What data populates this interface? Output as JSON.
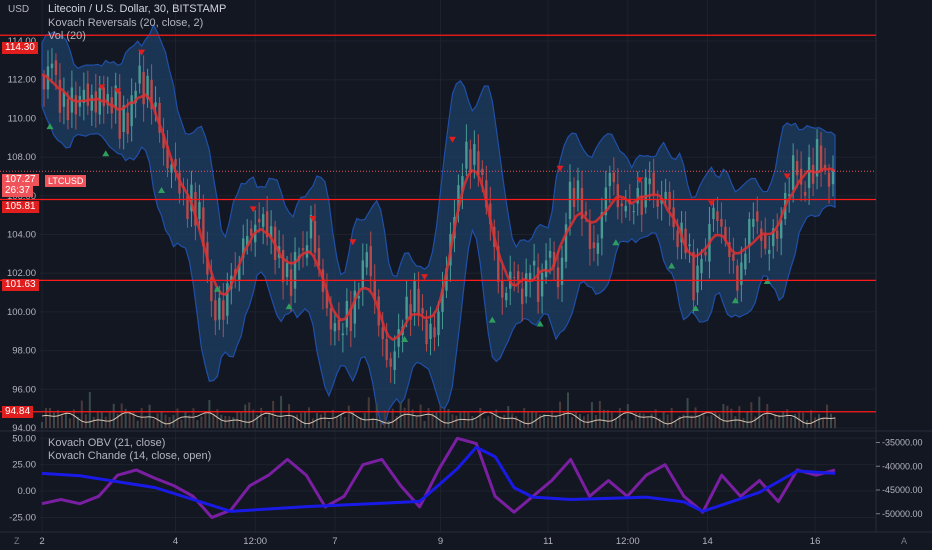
{
  "header": {
    "currency": "USD",
    "title": "Litecoin / U.S. Dollar, 30, BITSTAMP",
    "indicator1": "Kovach Reversals (20, close, 2)",
    "indicator2": "Vol (20)",
    "indicator3": "Kovach OBV (21, close)",
    "indicator4": "Kovach Chande (14, close, open)"
  },
  "price_tags": {
    "h1": "114.30",
    "h2": "105.81",
    "h3": "101.63",
    "h4": "94.84",
    "last_price": "107.27",
    "countdown": "26:37",
    "symbol": "LTCUSD"
  },
  "corner": {
    "left": "Z",
    "right": "A"
  },
  "colors": {
    "background": "#131722",
    "band_fill": "#1e3f66",
    "band_edge": "#1f4fa8",
    "mid_line": "#e03030",
    "candle_up": "#4a9a94",
    "candle_down": "#b84a4a",
    "hline": "#ff1a1a",
    "obv": "#1a1ae6",
    "chande": "#7b1fa2"
  },
  "chart_data": [
    {
      "type": "candlestick",
      "title": "Litecoin / U.S. Dollar, 30, BITSTAMP",
      "ylabel": "USD",
      "ylim": [
        94,
        115.5
      ],
      "y_ticks": [
        "114.00",
        "112.00",
        "110.00",
        "108.00",
        "106.00",
        "104.00",
        "102.00",
        "100.00",
        "98.00",
        "96.00",
        "94.00"
      ],
      "x_ticks": [
        "2",
        "4",
        "12:00",
        "7",
        "9",
        "11",
        "12:00",
        "14",
        "16"
      ],
      "horizontal_lines": [
        114.3,
        105.81,
        101.63,
        94.84
      ],
      "last_price": 107.27,
      "close_path": [
        [
          0,
          112.2
        ],
        [
          4,
          111.5
        ],
        [
          8,
          112.6
        ],
        [
          12,
          113.0
        ],
        [
          16,
          112.0
        ],
        [
          20,
          110.6
        ],
        [
          24,
          111.0
        ],
        [
          28,
          110.3
        ],
        [
          32,
          111.2
        ],
        [
          36,
          110.6
        ],
        [
          40,
          110.8
        ],
        [
          44,
          111.8
        ],
        [
          48,
          110.4
        ],
        [
          52,
          111.4
        ],
        [
          56,
          110.2
        ],
        [
          60,
          111.6
        ],
        [
          64,
          110.7
        ],
        [
          68,
          111.1
        ],
        [
          72,
          110.5
        ],
        [
          76,
          111.4
        ],
        [
          80,
          109.3
        ],
        [
          84,
          110.3
        ],
        [
          88,
          109.6
        ],
        [
          92,
          110.8
        ],
        [
          96,
          111.8
        ],
        [
          100,
          112.4
        ],
        [
          104,
          111.0
        ],
        [
          108,
          112.0
        ],
        [
          112,
          110.6
        ],
        [
          116,
          110.8
        ],
        [
          120,
          109.2
        ],
        [
          124,
          108.6
        ],
        [
          128,
          107.2
        ],
        [
          132,
          107.9
        ],
        [
          136,
          107.2
        ],
        [
          140,
          106.5
        ],
        [
          144,
          106.0
        ],
        [
          148,
          105.2
        ],
        [
          152,
          106.2
        ],
        [
          156,
          104.8
        ],
        [
          160,
          105.4
        ],
        [
          164,
          103.6
        ],
        [
          168,
          101.8
        ],
        [
          172,
          100.6
        ],
        [
          176,
          99.6
        ],
        [
          180,
          100.6
        ],
        [
          184,
          99.8
        ],
        [
          188,
          101.2
        ],
        [
          192,
          102.2
        ],
        [
          196,
          101.6
        ],
        [
          200,
          102.8
        ],
        [
          204,
          103.4
        ],
        [
          208,
          104.3
        ],
        [
          212,
          103.6
        ],
        [
          216,
          104.8
        ],
        [
          220,
          104.4
        ],
        [
          224,
          105.2
        ],
        [
          228,
          103.8
        ],
        [
          232,
          104.4
        ],
        [
          236,
          102.8
        ],
        [
          240,
          103.2
        ],
        [
          244,
          101.8
        ],
        [
          248,
          102.2
        ],
        [
          252,
          101.2
        ],
        [
          256,
          102.7
        ],
        [
          260,
          103.3
        ],
        [
          264,
          102.8
        ],
        [
          268,
          103.8
        ],
        [
          272,
          104.7
        ],
        [
          276,
          103.3
        ],
        [
          280,
          102.2
        ],
        [
          284,
          101.1
        ],
        [
          288,
          100.2
        ],
        [
          292,
          99.0
        ],
        [
          296,
          99.6
        ],
        [
          300,
          98.8
        ],
        [
          304,
          99.2
        ],
        [
          308,
          100.2
        ],
        [
          312,
          99.4
        ],
        [
          316,
          100.7
        ],
        [
          320,
          101.2
        ],
        [
          324,
          102.3
        ],
        [
          328,
          103.4
        ],
        [
          332,
          101.6
        ],
        [
          336,
          100.8
        ],
        [
          340,
          99.2
        ],
        [
          344,
          98.6
        ],
        [
          348,
          97.6
        ],
        [
          352,
          97.0
        ],
        [
          356,
          98.2
        ],
        [
          360,
          98.8
        ],
        [
          364,
          99.6
        ],
        [
          368,
          100.4
        ],
        [
          372,
          100.0
        ],
        [
          376,
          101.2
        ],
        [
          380,
          100.2
        ],
        [
          384,
          99.6
        ],
        [
          388,
          98.6
        ],
        [
          392,
          99.2
        ],
        [
          396,
          98.8
        ],
        [
          400,
          100.0
        ],
        [
          404,
          101.1
        ],
        [
          408,
          102.4
        ],
        [
          412,
          103.8
        ],
        [
          416,
          105.2
        ],
        [
          420,
          106.2
        ],
        [
          424,
          107.4
        ],
        [
          428,
          108.4
        ],
        [
          432,
          107.6
        ],
        [
          436,
          108.3
        ],
        [
          440,
          107.4
        ],
        [
          444,
          106.8
        ],
        [
          448,
          105.6
        ],
        [
          452,
          104.4
        ],
        [
          456,
          103.4
        ],
        [
          460,
          101.6
        ],
        [
          464,
          100.6
        ],
        [
          468,
          101.2
        ],
        [
          472,
          101.8
        ],
        [
          476,
          102.1
        ],
        [
          480,
          101.2
        ],
        [
          484,
          100.8
        ],
        [
          488,
          101.6
        ],
        [
          492,
          102.4
        ],
        [
          496,
          102.3
        ],
        [
          500,
          100.8
        ],
        [
          504,
          101.8
        ],
        [
          508,
          102.8
        ],
        [
          512,
          103.1
        ],
        [
          516,
          102.3
        ],
        [
          520,
          101.4
        ],
        [
          524,
          102.6
        ],
        [
          528,
          104.8
        ],
        [
          532,
          106.4
        ],
        [
          536,
          105.8
        ],
        [
          540,
          106.4
        ],
        [
          544,
          105.2
        ],
        [
          548,
          104.6
        ],
        [
          552,
          103.6
        ],
        [
          556,
          103.0
        ],
        [
          560,
          103.8
        ],
        [
          564,
          105.0
        ],
        [
          568,
          106.5
        ],
        [
          572,
          107.2
        ],
        [
          576,
          106.6
        ],
        [
          580,
          105.6
        ],
        [
          584,
          105.2
        ],
        [
          588,
          105.8
        ],
        [
          592,
          105.2
        ],
        [
          596,
          105.6
        ],
        [
          600,
          106.0
        ],
        [
          604,
          105.4
        ],
        [
          608,
          106.6
        ],
        [
          612,
          107.2
        ],
        [
          616,
          105.8
        ],
        [
          620,
          105.6
        ],
        [
          624,
          105.8
        ],
        [
          628,
          106.2
        ],
        [
          632,
          105.4
        ],
        [
          636,
          104.2
        ],
        [
          640,
          103.6
        ],
        [
          644,
          104.3
        ],
        [
          648,
          103.4
        ],
        [
          652,
          103.1
        ],
        [
          656,
          101.0
        ],
        [
          660,
          102.0
        ],
        [
          664,
          103.1
        ],
        [
          668,
          102.6
        ],
        [
          672,
          104.8
        ],
        [
          676,
          105.2
        ],
        [
          680,
          104.8
        ],
        [
          684,
          104.4
        ],
        [
          688,
          103.6
        ],
        [
          692,
          103.0
        ],
        [
          696,
          102.4
        ],
        [
          700,
          101.4
        ],
        [
          704,
          102.2
        ],
        [
          708,
          103.4
        ],
        [
          712,
          104.4
        ],
        [
          716,
          105.2
        ],
        [
          720,
          104.3
        ],
        [
          724,
          104.0
        ],
        [
          728,
          103.0
        ],
        [
          732,
          103.4
        ],
        [
          736,
          104.2
        ],
        [
          740,
          103.8
        ],
        [
          744,
          104.8
        ],
        [
          748,
          106.0
        ],
        [
          752,
          106.3
        ],
        [
          756,
          107.8
        ],
        [
          760,
          107.4
        ],
        [
          764,
          106.2
        ],
        [
          768,
          106.4
        ],
        [
          772,
          107.6
        ],
        [
          776,
          107.0
        ],
        [
          780,
          108.6
        ],
        [
          784,
          107.6
        ],
        [
          788,
          107.2
        ],
        [
          792,
          106.6
        ],
        [
          796,
          107.3
        ]
      ],
      "series": [
        {
          "name": "Vol (20)",
          "unit": "volume",
          "values": [
            0.3,
            0.5,
            0.8,
            0.4,
            0.6,
            0.35,
            0.45,
            0.3,
            0.5,
            0.4,
            0.7,
            0.6,
            0.9,
            0.5,
            0.4,
            0.6,
            0.3,
            0.5,
            0.7,
            0.4,
            0.8,
            0.5,
            0.6,
            0.4,
            0.35,
            0.5,
            0.45,
            0.6,
            0.3,
            0.4,
            0.5,
            0.4,
            0.3,
            0.45,
            0.5,
            0.35,
            0.4,
            0.6,
            0.5,
            0.3
          ]
        }
      ],
      "up_markers": [
        [
          8,
          109.6
        ],
        [
          64,
          108.2
        ],
        [
          120,
          106.3
        ],
        [
          176,
          101.2
        ],
        [
          248,
          100.3
        ],
        [
          364,
          98.6
        ],
        [
          452,
          99.6
        ],
        [
          500,
          99.4
        ],
        [
          576,
          103.6
        ],
        [
          632,
          102.4
        ],
        [
          656,
          100.2
        ],
        [
          696,
          100.6
        ],
        [
          728,
          101.6
        ]
      ],
      "down_markers": [
        [
          60,
          111.6
        ],
        [
          76,
          111.4
        ],
        [
          100,
          113.4
        ],
        [
          212,
          105.3
        ],
        [
          272,
          104.8
        ],
        [
          312,
          103.6
        ],
        [
          384,
          101.8
        ],
        [
          412,
          108.9
        ],
        [
          520,
          107.4
        ],
        [
          600,
          106.8
        ],
        [
          672,
          105.6
        ],
        [
          748,
          107.0
        ]
      ]
    },
    {
      "type": "line",
      "title": "Kovach OBV / Kovach Chande",
      "ylim_left": [
        -35,
        55
      ],
      "y_ticks_left": [
        "50.00",
        "25.00",
        "0.00",
        "-25.00"
      ],
      "ylim_right": [
        -53000,
        -33000
      ],
      "y_ticks_right": [
        "-35000.00",
        "-40000.00",
        "-45000.00",
        "-50000.00"
      ],
      "series": [
        {
          "name": "Kovach OBV (21, close)",
          "axis": "right",
          "values": [
            [
              0,
              -41500
            ],
            [
              40,
              -42000
            ],
            [
              120,
              -44500
            ],
            [
              200,
              -49500
            ],
            [
              280,
              -48500
            ],
            [
              360,
              -47800
            ],
            [
              400,
              -47400
            ],
            [
              420,
              -44000
            ],
            [
              440,
              -40500
            ],
            [
              460,
              -36000
            ],
            [
              480,
              -38000
            ],
            [
              500,
              -44500
            ],
            [
              520,
              -46500
            ],
            [
              560,
              -47000
            ],
            [
              640,
              -46500
            ],
            [
              680,
              -47500
            ],
            [
              700,
              -49500
            ],
            [
              760,
              -45500
            ],
            [
              800,
              -41000
            ],
            [
              840,
              -41500
            ]
          ]
        },
        {
          "name": "Kovach Chande (14, close, open)",
          "axis": "left",
          "values": [
            [
              0,
              -12
            ],
            [
              20,
              -8
            ],
            [
              40,
              -12
            ],
            [
              60,
              -5
            ],
            [
              80,
              15
            ],
            [
              100,
              20
            ],
            [
              120,
              12
            ],
            [
              140,
              5
            ],
            [
              160,
              -5
            ],
            [
              180,
              -25
            ],
            [
              200,
              -18
            ],
            [
              220,
              5
            ],
            [
              240,
              15
            ],
            [
              260,
              30
            ],
            [
              280,
              15
            ],
            [
              300,
              -15
            ],
            [
              320,
              -5
            ],
            [
              340,
              25
            ],
            [
              360,
              30
            ],
            [
              380,
              5
            ],
            [
              400,
              -15
            ],
            [
              420,
              20
            ],
            [
              440,
              50
            ],
            [
              460,
              45
            ],
            [
              480,
              -5
            ],
            [
              500,
              -20
            ],
            [
              520,
              -5
            ],
            [
              540,
              10
            ],
            [
              560,
              30
            ],
            [
              580,
              -5
            ],
            [
              600,
              10
            ],
            [
              620,
              -5
            ],
            [
              640,
              15
            ],
            [
              660,
              25
            ],
            [
              680,
              -5
            ],
            [
              700,
              -20
            ],
            [
              720,
              15
            ],
            [
              740,
              -5
            ],
            [
              760,
              10
            ],
            [
              780,
              -10
            ],
            [
              800,
              20
            ],
            [
              820,
              15
            ],
            [
              840,
              20
            ]
          ]
        }
      ]
    }
  ]
}
